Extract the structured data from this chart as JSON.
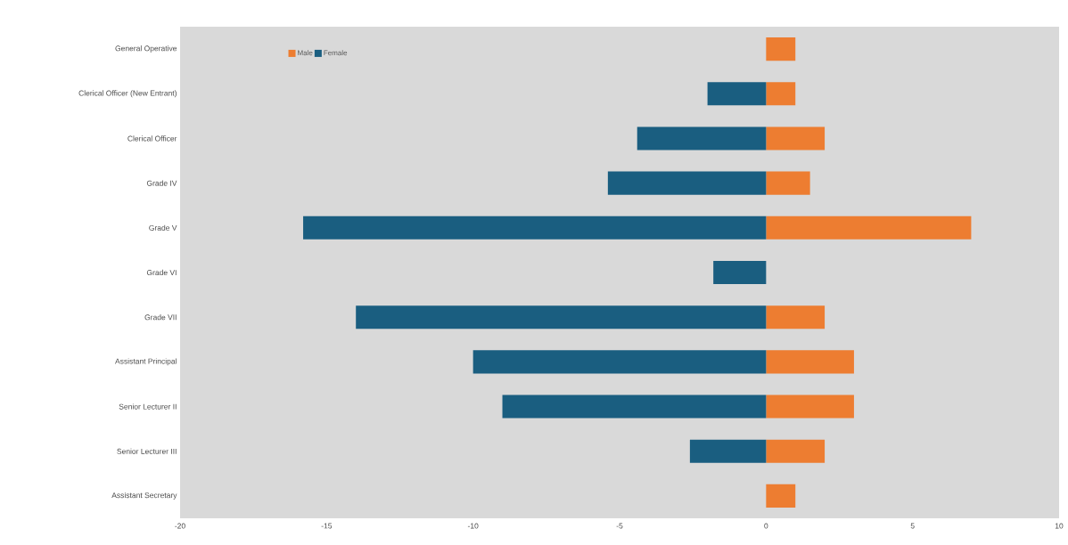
{
  "chart_data": {
    "type": "bar",
    "orientation": "horizontal",
    "stacked": true,
    "categories": [
      "General Operative",
      "Clerical Officer (New Entrant)",
      "Clerical Officer",
      "Grade IV",
      "Grade V",
      "Grade VI",
      "Grade VII",
      "Assistant Principal",
      "Senior Lecturer II",
      "Senior Lecturer III",
      "Assistant Secretary"
    ],
    "series": [
      {
        "name": "Male",
        "color": "#ed7d31",
        "values": [
          1,
          1,
          2,
          1.5,
          7,
          null,
          2,
          3,
          3,
          2,
          1
        ]
      },
      {
        "name": "Female",
        "color": "#1a5e80",
        "values": [
          null,
          -2,
          -4.4,
          -5.4,
          -15.8,
          -1.8,
          -14,
          -10,
          -9,
          -2.6,
          null
        ]
      }
    ],
    "xlim": [
      -20,
      10
    ],
    "xticks": [
      -20,
      -15,
      -10,
      -5,
      0,
      5,
      10
    ],
    "legend": "top left"
  }
}
